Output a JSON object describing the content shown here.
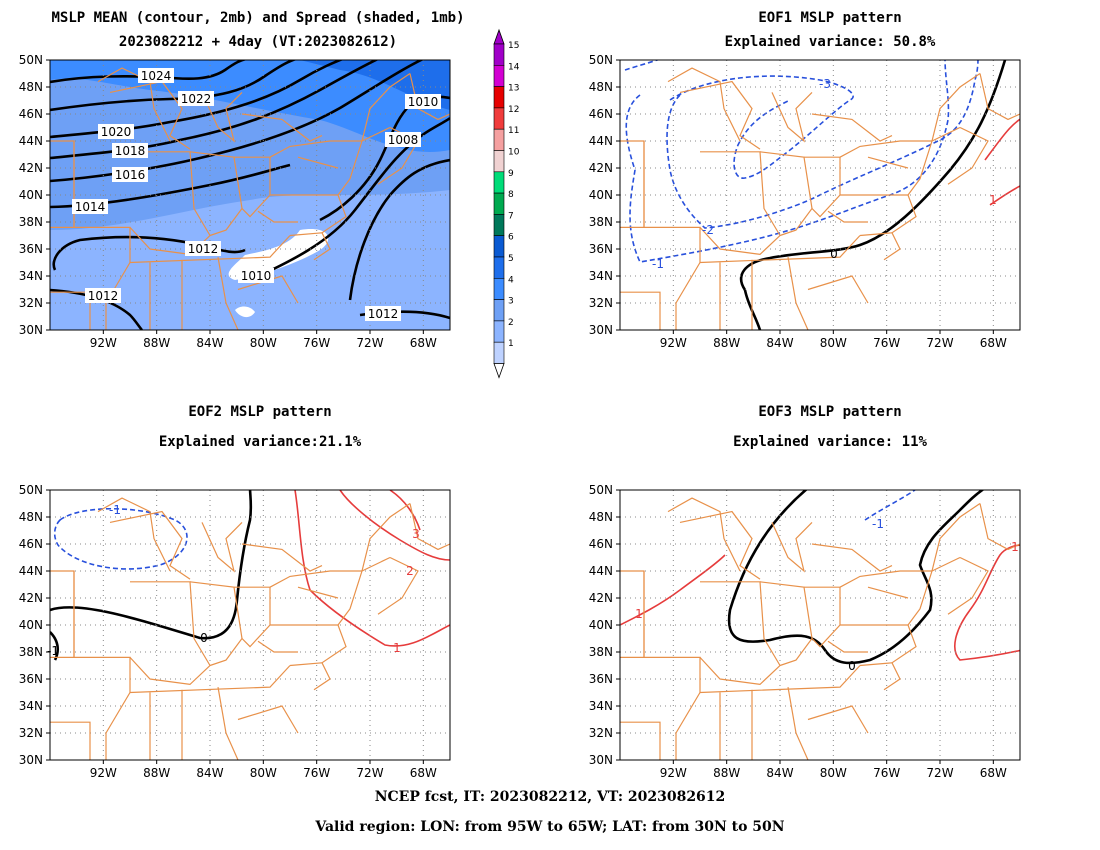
{
  "panels": [
    {
      "id": "mean",
      "title": "MSLP MEAN (contour, 2mb) and Spread (shaded, 1mb)",
      "subtitle": "2023082212 + 4day (VT:2023082612)"
    },
    {
      "id": "eof1",
      "title": "EOF1 MSLP pattern",
      "subtitle": "Explained variance: 50.8%"
    },
    {
      "id": "eof2",
      "title": "EOF2 MSLP pattern",
      "subtitle": "Explained variance:21.1%"
    },
    {
      "id": "eof3",
      "title": "EOF3 MSLP pattern",
      "subtitle": "Explained variance: 11%"
    }
  ],
  "axes": {
    "lon_labels": [
      "92W",
      "88W",
      "84W",
      "80W",
      "76W",
      "72W",
      "68W"
    ],
    "lat_labels": [
      "50N",
      "48N",
      "46N",
      "44N",
      "42N",
      "40N",
      "38N",
      "36N",
      "34N",
      "32N",
      "30N"
    ]
  },
  "colorbar": {
    "labels": [
      "15",
      "14",
      "13",
      "12",
      "11",
      "10",
      "9",
      "8",
      "7",
      "6",
      "5",
      "4",
      "3",
      "2",
      "1"
    ],
    "colors": [
      "#a000c8",
      "#d200d2",
      "#e60000",
      "#f03c3c",
      "#f5a0a0",
      "#f0d2d2",
      "#00dc78",
      "#00aa50",
      "#00785a",
      "#0a5ad2",
      "#1e6eeb",
      "#3c8cff",
      "#6ea0f5",
      "#8cb4ff",
      "#bed2ff"
    ]
  },
  "contour_labels": {
    "mean": [
      "1024",
      "1022",
      "1020",
      "1018",
      "1016",
      "1014",
      "1012",
      "1010",
      "1008",
      "1010",
      "1012",
      "1012",
      "1012"
    ],
    "eof1": [
      "-3",
      "-2",
      "-1",
      "0",
      "1"
    ],
    "eof2": [
      "-1",
      "0",
      "1",
      "2",
      "3",
      "-1"
    ],
    "eof3": [
      "-1",
      "0",
      "1",
      "1"
    ]
  },
  "footer": {
    "line1": "NCEP fcst, IT: 2023082212, VT: 2023082612",
    "line2": "Valid region: LON: from 95W to 65W; LAT: from 30N to 50N"
  }
}
